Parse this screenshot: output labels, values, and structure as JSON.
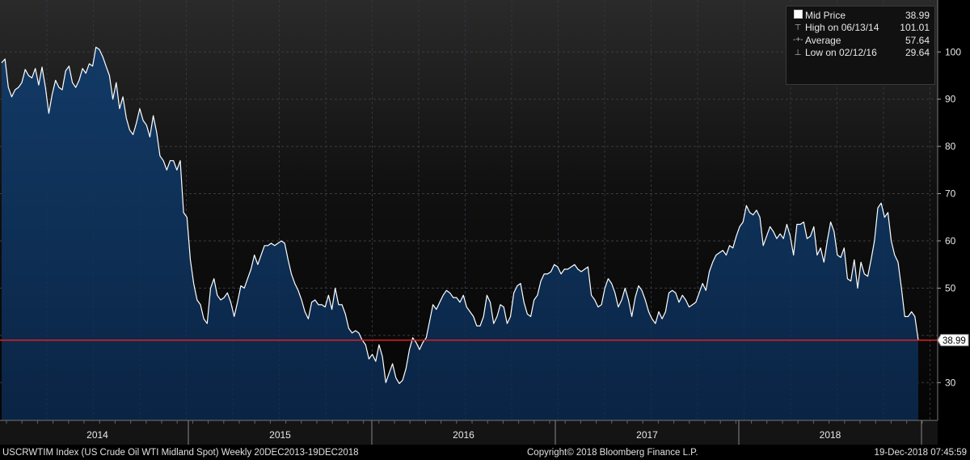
{
  "chart_data": {
    "type": "area",
    "ticker": "USCRWTIM Index",
    "series": [
      {
        "name": "Mid Price",
        "x_start": "2013-12-20",
        "x_end": "2018-12-19",
        "frequency": "Weekly",
        "values": [
          97.7,
          98.5,
          92.5,
          90.5,
          92,
          92.5,
          93.5,
          96.3,
          95,
          94.5,
          96.5,
          93,
          96.8,
          92.5,
          87,
          91,
          94,
          92.5,
          92,
          96,
          97,
          93.5,
          92.5,
          94,
          96.5,
          95.5,
          97.5,
          97,
          101,
          100.5,
          99,
          97,
          95,
          90,
          93.5,
          88,
          90.5,
          86,
          83.5,
          82.5,
          85,
          88,
          85.5,
          84.5,
          82,
          86.5,
          83,
          78,
          77,
          75,
          77,
          77,
          75,
          77,
          66,
          65,
          56,
          51,
          47.5,
          46.5,
          43.5,
          42.5,
          50,
          52,
          48.5,
          47.5,
          48,
          49,
          47,
          44,
          47,
          50.5,
          50,
          52,
          54,
          57,
          55,
          57,
          59,
          59,
          59.5,
          59,
          59.5,
          60,
          59.5,
          56,
          53,
          51,
          49.5,
          47.5,
          45,
          43.5,
          47,
          47.5,
          46.5,
          46.5,
          46,
          48.5,
          45.5,
          50,
          46.5,
          46.5,
          44.5,
          41.5,
          40.5,
          41,
          40.5,
          39,
          38,
          35,
          36,
          34.5,
          38,
          35.5,
          30,
          32,
          34,
          31,
          29.8,
          30.5,
          33,
          37,
          39.5,
          38.5,
          37,
          38.5,
          39.5,
          43,
          46.5,
          45.5,
          47,
          48.5,
          49.5,
          49,
          48,
          48,
          47,
          48.5,
          46,
          45,
          44,
          42,
          42,
          44,
          48.5,
          47,
          42.5,
          44,
          46.5,
          46,
          42.5,
          44,
          49,
          50.5,
          51,
          47,
          44.5,
          44,
          47.5,
          48.5,
          51.5,
          53,
          53,
          53.5,
          55,
          54.5,
          53,
          54,
          54,
          54.5,
          55,
          54,
          53.5,
          54,
          54.5,
          48.5,
          47.5,
          46,
          46.5,
          50,
          52,
          51,
          49,
          46,
          47.5,
          50,
          47.5,
          44,
          48,
          50.5,
          49.5,
          47.5,
          45,
          43.5,
          42.5,
          45,
          43.5,
          45,
          49,
          49.5,
          49,
          47,
          48.5,
          47.5,
          46,
          46.5,
          47,
          49,
          51,
          49.5,
          53.5,
          55.5,
          57,
          57.5,
          58,
          57,
          59,
          58.5,
          61,
          63,
          64,
          67.5,
          66,
          65.5,
          66.5,
          65,
          59,
          61,
          63,
          62,
          60.5,
          61.5,
          60.5,
          63.5,
          61,
          57,
          63.5,
          63.5,
          64,
          60.5,
          61,
          63,
          57,
          58.5,
          55.5,
          60,
          64,
          62,
          57,
          56.5,
          58.5,
          52,
          51.5,
          56,
          50,
          55.5,
          53,
          52.5,
          56,
          60,
          67,
          68,
          65,
          66,
          60,
          57,
          55.5,
          50,
          44,
          44,
          45,
          44,
          38.99
        ]
      },
      {
        "name": "Reference line",
        "value": 38.99
      }
    ],
    "ylim": [
      22,
      111
    ],
    "yticks": [
      30,
      40,
      50,
      60,
      70,
      80,
      90,
      100
    ],
    "xticks": [
      "2014",
      "2015",
      "2016",
      "2017",
      "2018"
    ],
    "grid": true,
    "colors": {
      "fill": "#0d2d52",
      "line": "#ffffff",
      "hline": "#e02020",
      "grid": "#3c3c3c"
    },
    "last_price_label": "38.99",
    "legend": {
      "placement": "top-right",
      "items": [
        {
          "symbol": "square",
          "label": "Mid Price",
          "value": "38.99"
        },
        {
          "symbol": "high-marker",
          "label": "High on 06/13/14",
          "value": "101.01"
        },
        {
          "symbol": "average-marker",
          "label": "Average",
          "value": "57.64"
        },
        {
          "symbol": "low-marker",
          "label": "Low on 02/12/16",
          "value": "29.64"
        }
      ]
    }
  },
  "footer": {
    "left": "USCRWTIM Index (US Crude Oil WTI Midland Spot)  Weekly 20DEC2013-19DEC2018",
    "center": "Copyright© 2018 Bloomberg Finance L.P.",
    "right": "19-Dec-2018 07:45:59"
  }
}
